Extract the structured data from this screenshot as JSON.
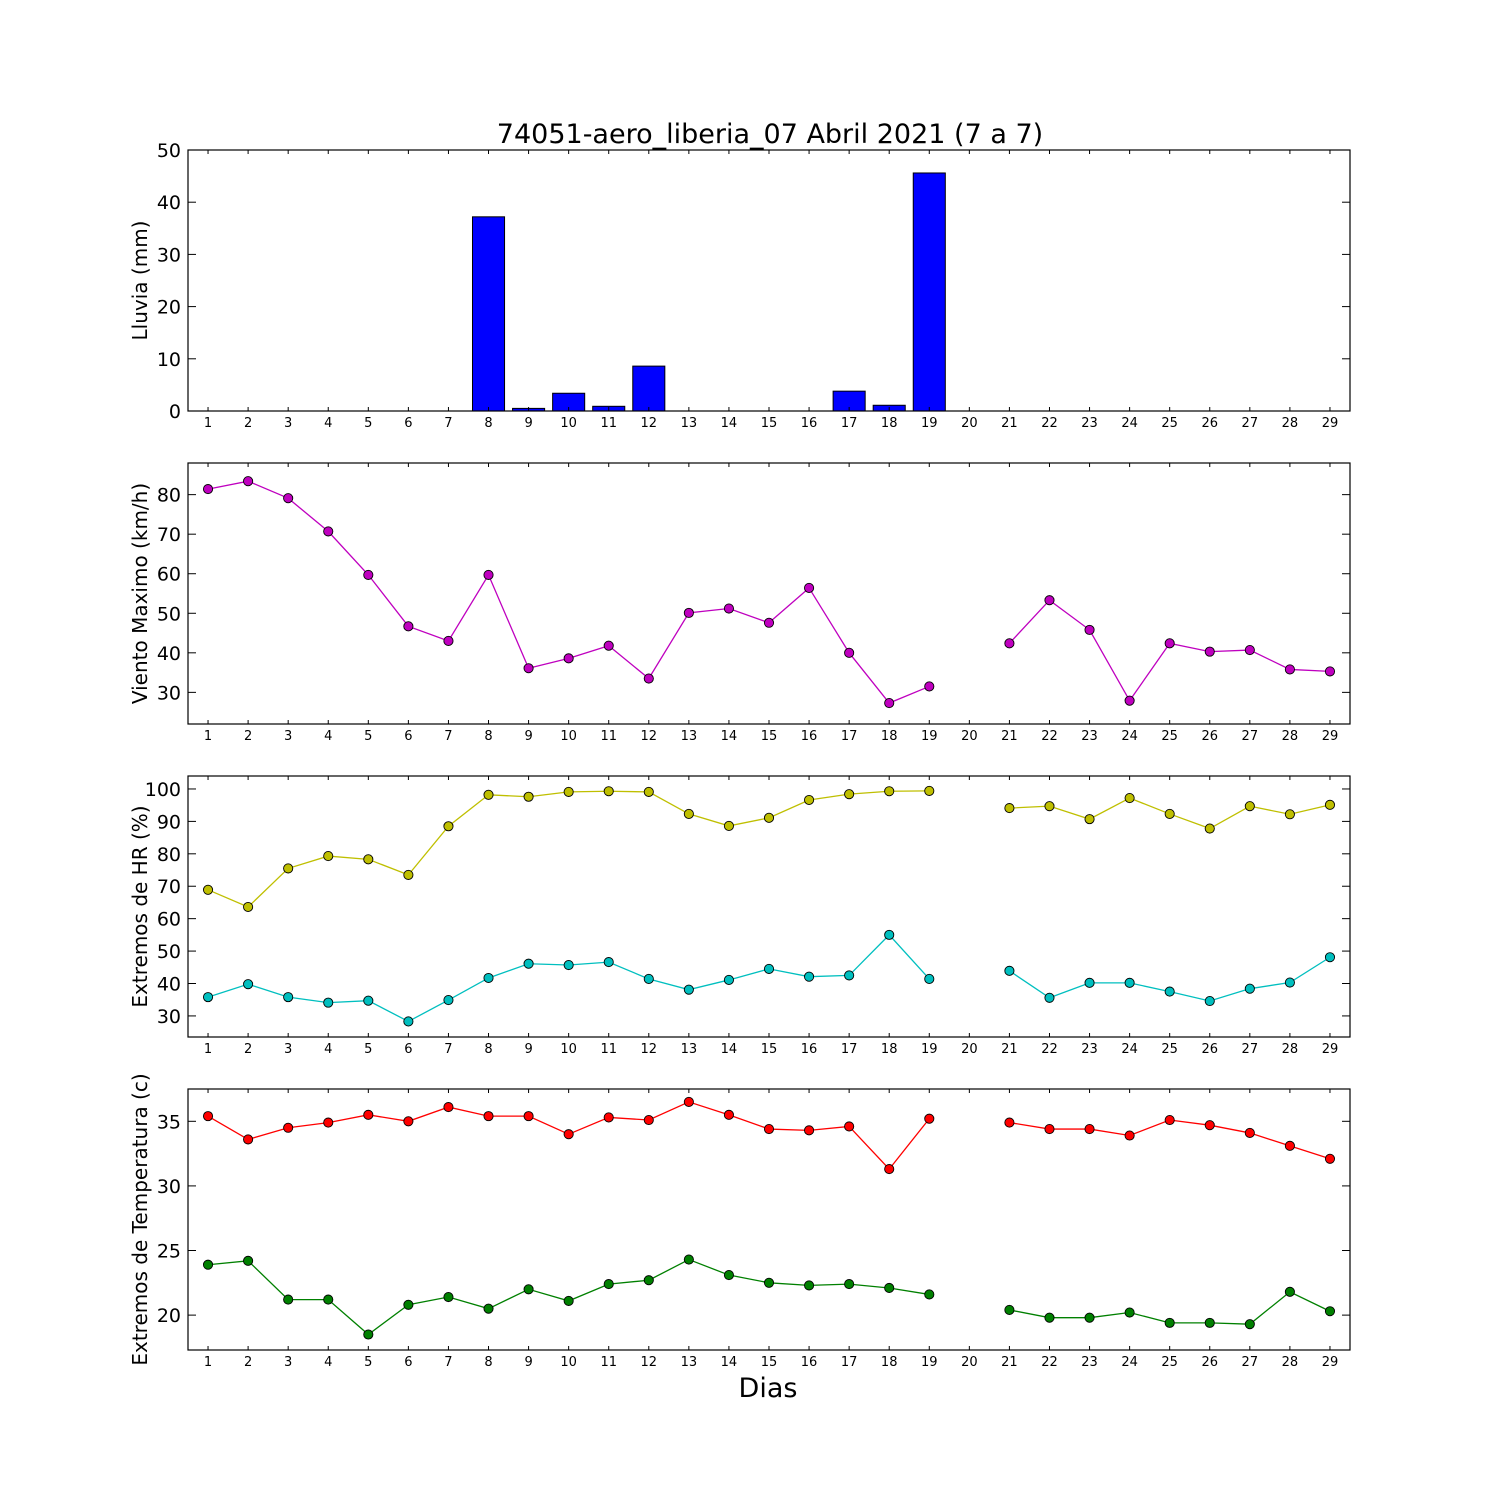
{
  "title": "74051-aero_liberia_07 Abril 2021  (7 a 7)",
  "xlabel": "Dias",
  "colors": {
    "rain": "#0000ff",
    "wind": "#bf00bf",
    "hr_max": "#bfbf00",
    "hr_min": "#00bfbf",
    "temp_max": "#ff0000",
    "temp_min": "#008000"
  },
  "chart_data": [
    {
      "type": "bar",
      "ylabel": "Lluvia (mm)",
      "categories": [
        1,
        2,
        3,
        4,
        5,
        6,
        7,
        8,
        9,
        10,
        11,
        12,
        13,
        14,
        15,
        16,
        17,
        18,
        19,
        20,
        21,
        22,
        23,
        24,
        25,
        26,
        27,
        28,
        29
      ],
      "values": [
        0,
        0,
        0,
        0,
        0,
        0,
        0,
        37.2,
        0.5,
        3.4,
        0.9,
        8.6,
        0,
        0,
        0,
        0,
        3.8,
        1.1,
        45.6,
        0,
        0,
        0,
        0,
        0,
        0,
        0,
        0,
        0,
        0
      ],
      "ylim": [
        0,
        50
      ],
      "yticks": [
        0,
        10,
        20,
        30,
        40,
        50
      ],
      "grid": false
    },
    {
      "type": "line",
      "ylabel": "Viento Maximo (km/h)",
      "x": [
        1,
        2,
        3,
        4,
        5,
        6,
        7,
        8,
        9,
        10,
        11,
        12,
        13,
        14,
        15,
        16,
        17,
        18,
        19,
        20,
        21,
        22,
        23,
        24,
        25,
        26,
        27,
        28,
        29
      ],
      "series": [
        {
          "color_key": "wind",
          "values": [
            81.4,
            83.4,
            79.1,
            70.7,
            59.7,
            46.7,
            43.0,
            59.7,
            36.1,
            38.6,
            41.8,
            33.5,
            50.1,
            51.2,
            47.6,
            56.4,
            40.0,
            27.3,
            31.5,
            null,
            42.4,
            53.3,
            45.8,
            27.9,
            42.4,
            40.3,
            40.7,
            35.8,
            35.3
          ]
        }
      ],
      "ylim": [
        22,
        88
      ],
      "yticks": [
        30,
        40,
        50,
        60,
        70,
        80
      ],
      "grid": false
    },
    {
      "type": "line",
      "ylabel": "Extremos de HR (%)",
      "x": [
        1,
        2,
        3,
        4,
        5,
        6,
        7,
        8,
        9,
        10,
        11,
        12,
        13,
        14,
        15,
        16,
        17,
        18,
        19,
        20,
        21,
        22,
        23,
        24,
        25,
        26,
        27,
        28,
        29
      ],
      "series": [
        {
          "color_key": "hr_max",
          "values": [
            68.9,
            63.6,
            75.5,
            79.3,
            78.3,
            73.5,
            88.5,
            98.2,
            97.6,
            99.1,
            99.3,
            99.1,
            92.3,
            88.6,
            91.1,
            96.6,
            98.4,
            99.3,
            99.4,
            null,
            94.1,
            94.7,
            90.7,
            97.2,
            92.3,
            87.8,
            94.7,
            92.2,
            95.1
          ]
        },
        {
          "color_key": "hr_min",
          "values": [
            35.8,
            39.8,
            35.8,
            34.1,
            34.7,
            28.3,
            34.9,
            41.7,
            46.1,
            45.7,
            46.6,
            41.4,
            38.1,
            41.1,
            44.5,
            42.1,
            42.5,
            55.0,
            41.4,
            null,
            43.9,
            35.6,
            40.2,
            40.2,
            37.5,
            34.6,
            38.4,
            40.3,
            48.1
          ]
        }
      ],
      "ylim": [
        23.5,
        104
      ],
      "yticks": [
        30,
        40,
        50,
        60,
        70,
        80,
        90,
        100
      ],
      "grid": false
    },
    {
      "type": "line",
      "ylabel": "Extremos de Temperatura (c)",
      "x": [
        1,
        2,
        3,
        4,
        5,
        6,
        7,
        8,
        9,
        10,
        11,
        12,
        13,
        14,
        15,
        16,
        17,
        18,
        19,
        20,
        21,
        22,
        23,
        24,
        25,
        26,
        27,
        28,
        29
      ],
      "series": [
        {
          "color_key": "temp_max",
          "values": [
            35.4,
            33.6,
            34.5,
            34.9,
            35.5,
            35.0,
            36.1,
            35.4,
            35.4,
            34.0,
            35.3,
            35.1,
            36.5,
            35.5,
            34.4,
            34.3,
            34.6,
            31.3,
            35.2,
            null,
            34.9,
            34.4,
            34.4,
            33.9,
            35.1,
            34.7,
            34.1,
            33.1,
            32.1
          ]
        },
        {
          "color_key": "temp_min",
          "values": [
            23.9,
            24.2,
            21.2,
            21.2,
            18.5,
            20.8,
            21.4,
            20.5,
            22.0,
            21.1,
            22.4,
            22.7,
            24.3,
            23.1,
            22.5,
            22.3,
            22.4,
            22.1,
            21.6,
            null,
            20.4,
            19.8,
            19.8,
            20.2,
            19.4,
            19.4,
            19.3,
            21.8,
            20.3
          ]
        }
      ],
      "ylim": [
        17.3,
        37.5
      ],
      "yticks": [
        20,
        25,
        30,
        35
      ],
      "grid": false
    }
  ]
}
